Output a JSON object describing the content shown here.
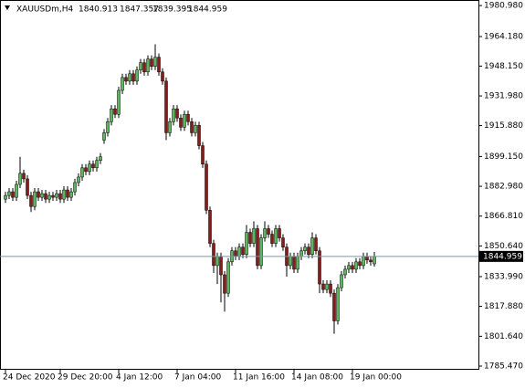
{
  "chart_data": {
    "type": "candlestick",
    "symbol": "XAUUSDm,H4",
    "bull_color": "#5cb85c",
    "bear_color": "#8b1a1a",
    "wick_color": "#000000",
    "price_line_color": "#7f95a3",
    "ylim": [
      1783.5,
      1984
    ],
    "yticks": [
      {
        "value": 1785.47,
        "label": "1785.470"
      },
      {
        "value": 1801.64,
        "label": "1801.640"
      },
      {
        "value": 1817.88,
        "label": "1817.880"
      },
      {
        "value": 1833.99,
        "label": "1833.990"
      },
      {
        "value": 1850.64,
        "label": "1850.640"
      },
      {
        "value": 1866.81,
        "label": "1866.810"
      },
      {
        "value": 1882.98,
        "label": "1882.980"
      },
      {
        "value": 1899.15,
        "label": "1899.150"
      },
      {
        "value": 1915.88,
        "label": "1915.880"
      },
      {
        "value": 1931.98,
        "label": "1931.980"
      },
      {
        "value": 1948.15,
        "label": "1948.150"
      },
      {
        "value": 1964.18,
        "label": "1964.180"
      },
      {
        "value": 1980.98,
        "label": "1980.980"
      }
    ],
    "categories": [
      "24 Dec 2020",
      null,
      null,
      null,
      null,
      null,
      null,
      null,
      null,
      null,
      null,
      null,
      null,
      null,
      null,
      "29 Dec 20:00",
      null,
      null,
      null,
      null,
      null,
      null,
      null,
      null,
      null,
      null,
      null,
      null,
      null,
      null,
      null,
      "4 Jan 12:00",
      null,
      null,
      null,
      null,
      null,
      null,
      null,
      null,
      null,
      null,
      null,
      null,
      null,
      null,
      null,
      "7 Jan 04:00",
      null,
      null,
      null,
      null,
      null,
      null,
      null,
      null,
      null,
      null,
      null,
      null,
      null,
      null,
      null,
      "11 Jan 16:00",
      null,
      null,
      null,
      null,
      null,
      null,
      null,
      null,
      null,
      null,
      null,
      null,
      null,
      null,
      null,
      "14 Jan 08:00",
      null,
      null,
      null,
      null,
      null,
      null,
      null,
      null,
      null,
      null,
      null,
      null,
      null,
      null,
      null,
      "19 Jan 00:00",
      null,
      null,
      null,
      null,
      null,
      null
    ],
    "candles": [
      [
        1876,
        1880,
        1874,
        1878
      ],
      [
        1878,
        1882,
        1876,
        1880
      ],
      [
        1880,
        1882,
        1875,
        1877
      ],
      [
        1877,
        1886,
        1875,
        1884
      ],
      [
        1884,
        1899,
        1882,
        1890
      ],
      [
        1890,
        1892,
        1885,
        1887
      ],
      [
        1887,
        1889,
        1876,
        1878
      ],
      [
        1878,
        1880,
        1869,
        1872
      ],
      [
        1872,
        1882,
        1870,
        1880
      ],
      [
        1880,
        1882,
        1875,
        1877
      ],
      [
        1877,
        1881,
        1875,
        1879
      ],
      [
        1879,
        1881,
        1874,
        1876
      ],
      [
        1876,
        1880,
        1874,
        1878
      ],
      [
        1878,
        1880,
        1875,
        1877
      ],
      [
        1877,
        1881,
        1875,
        1879
      ],
      [
        1879,
        1881,
        1874,
        1876
      ],
      [
        1876,
        1883,
        1874,
        1881
      ],
      [
        1881,
        1883,
        1875,
        1877
      ],
      [
        1877,
        1882,
        1875,
        1880
      ],
      [
        1880,
        1887,
        1878,
        1885
      ],
      [
        1885,
        1890,
        1883,
        1888
      ],
      [
        1888,
        1895,
        1886,
        1893
      ],
      [
        1893,
        1895,
        1889,
        1891
      ],
      [
        1891,
        1897,
        1889,
        1895
      ],
      [
        1895,
        1897,
        1891,
        1893
      ],
      [
        1893,
        1899,
        1891,
        1897
      ],
      [
        1897,
        1901,
        1895,
        1899
      ],
      [
        1908,
        1914,
        1906,
        1912
      ],
      [
        1912,
        1920,
        1910,
        1918
      ],
      [
        1918,
        1927,
        1916,
        1925
      ],
      [
        1925,
        1927,
        1920,
        1922
      ],
      [
        1922,
        1937,
        1920,
        1935
      ],
      [
        1935,
        1944,
        1933,
        1942
      ],
      [
        1942,
        1944,
        1938,
        1940
      ],
      [
        1940,
        1946,
        1938,
        1944
      ],
      [
        1944,
        1946,
        1938,
        1940
      ],
      [
        1940,
        1948,
        1938,
        1946
      ],
      [
        1946,
        1952,
        1944,
        1950
      ],
      [
        1950,
        1952,
        1943,
        1945
      ],
      [
        1945,
        1954,
        1943,
        1952
      ],
      [
        1952,
        1954,
        1946,
        1948
      ],
      [
        1948,
        1960,
        1946,
        1953
      ],
      [
        1953,
        1955,
        1943,
        1945
      ],
      [
        1945,
        1947,
        1938,
        1940
      ],
      [
        1940,
        1942,
        1908,
        1912
      ],
      [
        1912,
        1920,
        1910,
        1918
      ],
      [
        1918,
        1927,
        1916,
        1925
      ],
      [
        1925,
        1927,
        1918,
        1920
      ],
      [
        1920,
        1922,
        1913,
        1915
      ],
      [
        1915,
        1924,
        1913,
        1922
      ],
      [
        1922,
        1924,
        1916,
        1918
      ],
      [
        1918,
        1920,
        1910,
        1912
      ],
      [
        1912,
        1918,
        1910,
        1916
      ],
      [
        1916,
        1918,
        1903,
        1905
      ],
      [
        1905,
        1907,
        1893,
        1895
      ],
      [
        1895,
        1897,
        1868,
        1870
      ],
      [
        1870,
        1872,
        1850,
        1852
      ],
      [
        1852,
        1854,
        1836,
        1840
      ],
      [
        1840,
        1847,
        1830,
        1845
      ],
      [
        1845,
        1847,
        1820,
        1835
      ],
      [
        1835,
        1837,
        1815,
        1825
      ],
      [
        1825,
        1844,
        1823,
        1842
      ],
      [
        1842,
        1850,
        1840,
        1848
      ],
      [
        1848,
        1850,
        1843,
        1845
      ],
      [
        1845,
        1852,
        1843,
        1850
      ],
      [
        1850,
        1852,
        1844,
        1846
      ],
      [
        1846,
        1862,
        1844,
        1858
      ],
      [
        1858,
        1860,
        1850,
        1852
      ],
      [
        1852,
        1864,
        1850,
        1860
      ],
      [
        1860,
        1862,
        1838,
        1840
      ],
      [
        1840,
        1857,
        1838,
        1855
      ],
      [
        1855,
        1864,
        1853,
        1860
      ],
      [
        1860,
        1862,
        1855,
        1857
      ],
      [
        1857,
        1859,
        1850,
        1852
      ],
      [
        1852,
        1862,
        1850,
        1860
      ],
      [
        1860,
        1862,
        1853,
        1855
      ],
      [
        1855,
        1857,
        1848,
        1850
      ],
      [
        1850,
        1852,
        1834,
        1840
      ],
      [
        1840,
        1847,
        1838,
        1845
      ],
      [
        1845,
        1847,
        1836,
        1838
      ],
      [
        1838,
        1847,
        1836,
        1845
      ],
      [
        1845,
        1850,
        1843,
        1848
      ],
      [
        1848,
        1852,
        1846,
        1850
      ],
      [
        1850,
        1852,
        1844,
        1846
      ],
      [
        1846,
        1858,
        1844,
        1855
      ],
      [
        1855,
        1857,
        1846,
        1848
      ],
      [
        1848,
        1850,
        1825,
        1830
      ],
      [
        1830,
        1832,
        1825,
        1827
      ],
      [
        1827,
        1832,
        1825,
        1830
      ],
      [
        1830,
        1832,
        1823,
        1825
      ],
      [
        1825,
        1827,
        1803,
        1810
      ],
      [
        1810,
        1830,
        1808,
        1828
      ],
      [
        1828,
        1837,
        1826,
        1835
      ],
      [
        1835,
        1840,
        1833,
        1838
      ],
      [
        1838,
        1842,
        1836,
        1840
      ],
      [
        1840,
        1842,
        1836,
        1838
      ],
      [
        1838,
        1844,
        1836,
        1842
      ],
      [
        1842,
        1844,
        1838,
        1840
      ],
      [
        1840,
        1847,
        1838,
        1845
      ],
      [
        1845,
        1847,
        1841,
        1843
      ],
      [
        1843,
        1845,
        1840,
        1842
      ],
      [
        1840.913,
        1847.357,
        1839.395,
        1844.959
      ]
    ]
  }
}
